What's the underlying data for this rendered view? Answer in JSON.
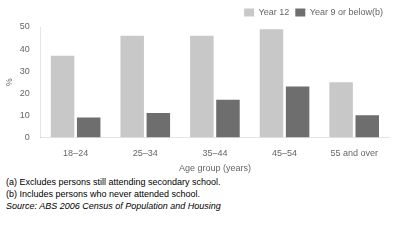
{
  "chart_data": {
    "type": "bar",
    "categories": [
      "18–24",
      "25–34",
      "35–44",
      "45–54",
      "55 and over"
    ],
    "series": [
      {
        "name": "Year 12",
        "color": "#c8c8c8",
        "values": [
          37,
          46,
          46,
          49,
          25
        ]
      },
      {
        "name": "Year 9 or below(b)",
        "color": "#6e6e6e",
        "values": [
          9,
          11,
          17,
          23,
          10
        ]
      }
    ],
    "xlabel": "Age group (years)",
    "ylabel": "%",
    "ylim": [
      0,
      50
    ],
    "yticks": [
      0,
      10,
      20,
      30,
      40,
      50
    ],
    "grid": false,
    "legend": "upper right",
    "annotations": [
      "(a) Excludes persons still attending secondary school.",
      "(b) Includes persons who never attended school.",
      "Source: ABS 2006 Census of Population and Housing"
    ]
  }
}
